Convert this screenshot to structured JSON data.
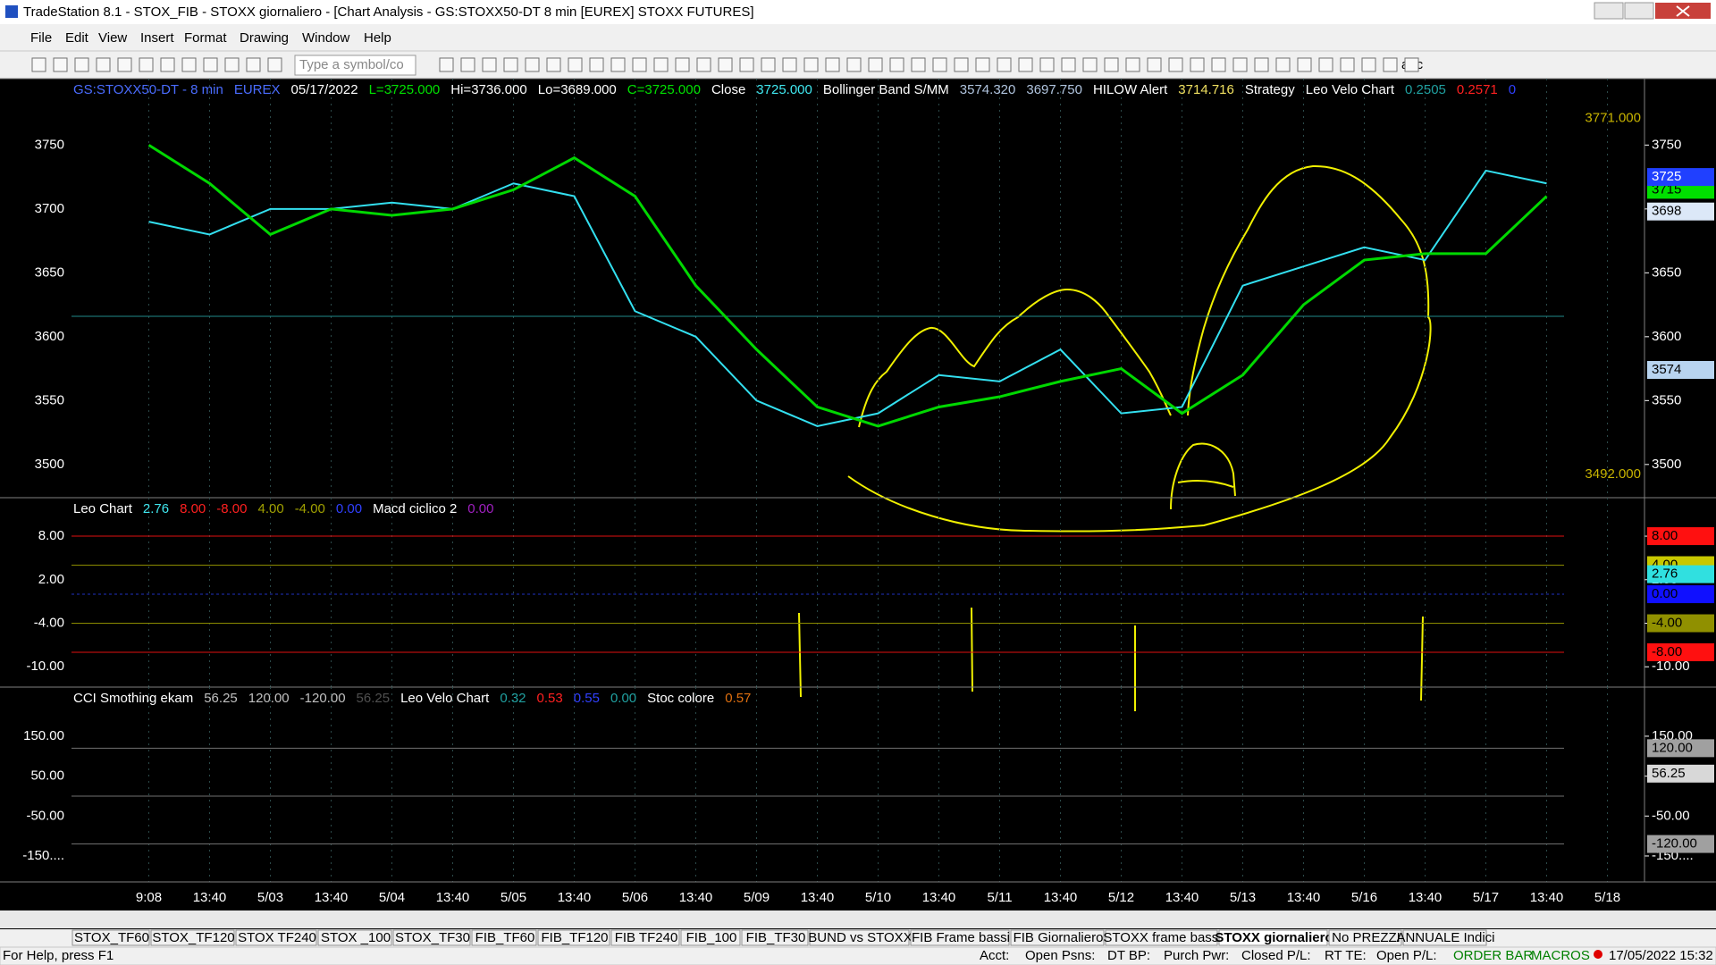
{
  "window": {
    "title": "TradeStation 8.1 - STOX_FIB - STOXX giornaliero - [Chart Analysis - GS:STOXX50-DT  8 min  [EUREX] STOXX FUTURES]"
  },
  "menu": [
    "File",
    "Edit",
    "View",
    "Insert",
    "Format",
    "Drawing",
    "Window",
    "Help"
  ],
  "toolbar": {
    "symbol_input": "Type a symbol/co",
    "abc": "abc"
  },
  "chart_data": [
    {
      "type": "line",
      "header": [
        {
          "text": "GS:STOXX50-DT - 8 min",
          "color": "#4a6cff"
        },
        {
          "text": "EUREX",
          "color": "#4a6cff"
        },
        {
          "text": "05/17/2022",
          "color": "#ffffff"
        },
        {
          "text": "L=3725.000",
          "color": "#00e000"
        },
        {
          "text": "Hi=3736.000",
          "color": "#ffffff"
        },
        {
          "text": "Lo=3689.000",
          "color": "#ffffff"
        },
        {
          "text": "C=3725.000",
          "color": "#00e000"
        },
        {
          "text": "Close",
          "color": "#ffffff"
        },
        {
          "text": "3725.000",
          "color": "#40e8f0"
        },
        {
          "text": "Bollinger Band S/MM",
          "color": "#ffffff"
        },
        {
          "text": "3574.320",
          "color": "#b0c4de"
        },
        {
          "text": "3697.750",
          "color": "#b0c4de"
        },
        {
          "text": "HILOW Alert",
          "color": "#ffffff"
        },
        {
          "text": "3714.716",
          "color": "#f0e060"
        },
        {
          "text": "Strategy",
          "color": "#ffffff"
        },
        {
          "text": "Leo Velo Chart",
          "color": "#ffffff"
        },
        {
          "text": "0.2505",
          "color": "#20a0a0"
        },
        {
          "text": "0.2571",
          "color": "#ff2020"
        },
        {
          "text": "0",
          "color": "#3040ff"
        }
      ],
      "categories": [
        "9:08",
        "13:40",
        "5/03",
        "13:40",
        "5/04",
        "13:40",
        "5/05",
        "13:40",
        "5/06",
        "13:40",
        "5/09",
        "13:40",
        "5/10",
        "13:40",
        "5/11",
        "13:40",
        "5/12",
        "13:40",
        "5/13",
        "13:40",
        "5/16",
        "13:40",
        "5/17",
        "13:40",
        "5/18"
      ],
      "series": [
        {
          "color": "#33e0f0",
          "values": [
            3690,
            3680,
            3700,
            3700,
            3705,
            3700,
            3720,
            3710,
            3620,
            3600,
            3550,
            3530,
            3540,
            3570,
            3565,
            3590,
            3540,
            3545,
            3640,
            3655,
            3670,
            3660,
            3730,
            3720,
            null
          ]
        },
        {
          "color": "#00d800",
          "values": [
            3750,
            3720,
            3680,
            3700,
            3695,
            3700,
            3715,
            3740,
            3710,
            3640,
            3590,
            3545,
            3530,
            3545,
            3553,
            3565,
            3575,
            3540,
            3570,
            3625,
            3660,
            3665,
            3665,
            3710,
            null
          ]
        }
      ],
      "ylim": [
        3474,
        3802
      ],
      "yticks": [
        3500,
        3550,
        3600,
        3650,
        3700,
        3750
      ],
      "reference_lines": [
        {
          "value": 3616,
          "color": "#1f8a8a"
        }
      ],
      "tags": [
        {
          "value": 3771,
          "label": "3771.000",
          "fg": "#c8b400"
        },
        {
          "value": 3492,
          "label": "3492.000",
          "fg": "#c8b400"
        },
        {
          "value": 3715,
          "bg": "#00e000",
          "fg": "#000000"
        },
        {
          "value": 3725,
          "bg": "#2040ff",
          "fg": "#ffffff"
        },
        {
          "value": 3698,
          "bg": "#dce8f8",
          "fg": "#000000"
        },
        {
          "value": 3574,
          "bg": "#b8d4f0",
          "fg": "#000000"
        }
      ]
    },
    {
      "type": "line",
      "header": [
        {
          "text": "Leo Chart",
          "color": "#ffffff"
        },
        {
          "text": "2.76",
          "color": "#40e8f0"
        },
        {
          "text": "8.00",
          "color": "#ff2020"
        },
        {
          "text": "-8.00",
          "color": "#ff2020"
        },
        {
          "text": "4.00",
          "color": "#a0a000"
        },
        {
          "text": "-4.00",
          "color": "#a0a000"
        },
        {
          "text": "0.00",
          "color": "#3040ff"
        },
        {
          "text": "Macd ciclico 2",
          "color": "#ffffff"
        },
        {
          "text": "0.00",
          "color": "#a020c0"
        }
      ],
      "ylim": [
        -12.8,
        13.3
      ],
      "yticks": [
        {
          "value": 8,
          "label": "8.00"
        },
        {
          "value": 2,
          "label": "2.00"
        },
        {
          "value": -4,
          "label": "-4.00"
        },
        {
          "value": -10,
          "label": "-10.00"
        }
      ],
      "reference_lines": [
        {
          "value": 8,
          "color": "#e01010"
        },
        {
          "value": 4,
          "color": "#8a8a00"
        },
        {
          "value": 0,
          "color": "#2030c0"
        },
        {
          "value": -4,
          "color": "#8a8a00"
        },
        {
          "value": -8,
          "color": "#e01010"
        }
      ],
      "tags": [
        {
          "value": 8,
          "label": "8.00",
          "bg": "#ff1010",
          "fg": "#000000"
        },
        {
          "value": 4,
          "label": "4.00",
          "bg": "#c8c800",
          "fg": "#000000"
        },
        {
          "value": 2.76,
          "label": "2.76",
          "bg": "#30e0e0",
          "fg": "#000000"
        },
        {
          "value": 0,
          "label": "0.00",
          "bg": "#1010ff",
          "fg": "#000000"
        },
        {
          "value": -4,
          "label": "-4.00",
          "bg": "#909000",
          "fg": "#000000"
        },
        {
          "value": -8,
          "label": "-8.00",
          "bg": "#ff1010",
          "fg": "#000000"
        }
      ]
    },
    {
      "type": "line",
      "header": [
        {
          "text": "CCI Smothing ekam",
          "color": "#ffffff"
        },
        {
          "text": "56.25",
          "color": "#c0c0c0"
        },
        {
          "text": "120.00",
          "color": "#c0c0c0"
        },
        {
          "text": "-120.00",
          "color": "#c0c0c0"
        },
        {
          "text": "56.25",
          "color": "#505050"
        },
        {
          "text": "Leo Velo Chart",
          "color": "#ffffff"
        },
        {
          "text": "0.32",
          "color": "#20a0a0"
        },
        {
          "text": "0.53",
          "color": "#ff2020"
        },
        {
          "text": "0.55",
          "color": "#3040ff"
        },
        {
          "text": "0.00",
          "color": "#20a0a0"
        },
        {
          "text": "Stoc colore",
          "color": "#ffffff"
        },
        {
          "text": "0.57",
          "color": "#e07010"
        }
      ],
      "ylim": [
        -215,
        273
      ],
      "yticks": [
        {
          "value": 150,
          "label": "150.00"
        },
        {
          "value": 50,
          "label": "50.00"
        },
        {
          "value": -50,
          "label": "-50.00"
        },
        {
          "value": -150,
          "label": "-150...."
        }
      ],
      "reference_lines": [
        {
          "value": 120,
          "color": "#707070"
        },
        {
          "value": 0,
          "color": "#707070"
        },
        {
          "value": -120,
          "color": "#707070"
        }
      ],
      "tags": [
        {
          "value": 120,
          "label": "120.00",
          "bg": "#a0a0a0",
          "fg": "#000000"
        },
        {
          "value": 56.25,
          "label": "56.25",
          "bg": "#d8d8d8",
          "fg": "#000000"
        },
        {
          "value": -120,
          "label": "-120.00",
          "bg": "#a0a0a0",
          "fg": "#000000"
        }
      ]
    }
  ],
  "tabs": [
    "STOX_TF60",
    "STOX_TF120",
    "STOX TF240",
    "STOX _100",
    "STOX_TF30",
    "FIB_TF60",
    "FIB_TF120",
    "FIB TF240",
    "FIB_100",
    "FIB_TF30",
    "BUND vs STOXX",
    "FIB Frame bassi",
    "FIB Giornaliero",
    "STOXX frame bassi",
    "STOXX giornaliero",
    "No PREZZI",
    "ANNUALE Indici"
  ],
  "status": {
    "help": "For Help, press F1",
    "acct": "Acct:",
    "open_psns": "Open Psns:",
    "dt_bp": "DT BP:",
    "purch_pwr": "Purch Pwr:",
    "closed_pl": "Closed P/L:",
    "rt_te": "RT TE:",
    "open_pl": "Open P/L:",
    "order_bar": "ORDER BAR",
    "macros": "MACROS",
    "datetime": "17/05/2022 15:32"
  }
}
